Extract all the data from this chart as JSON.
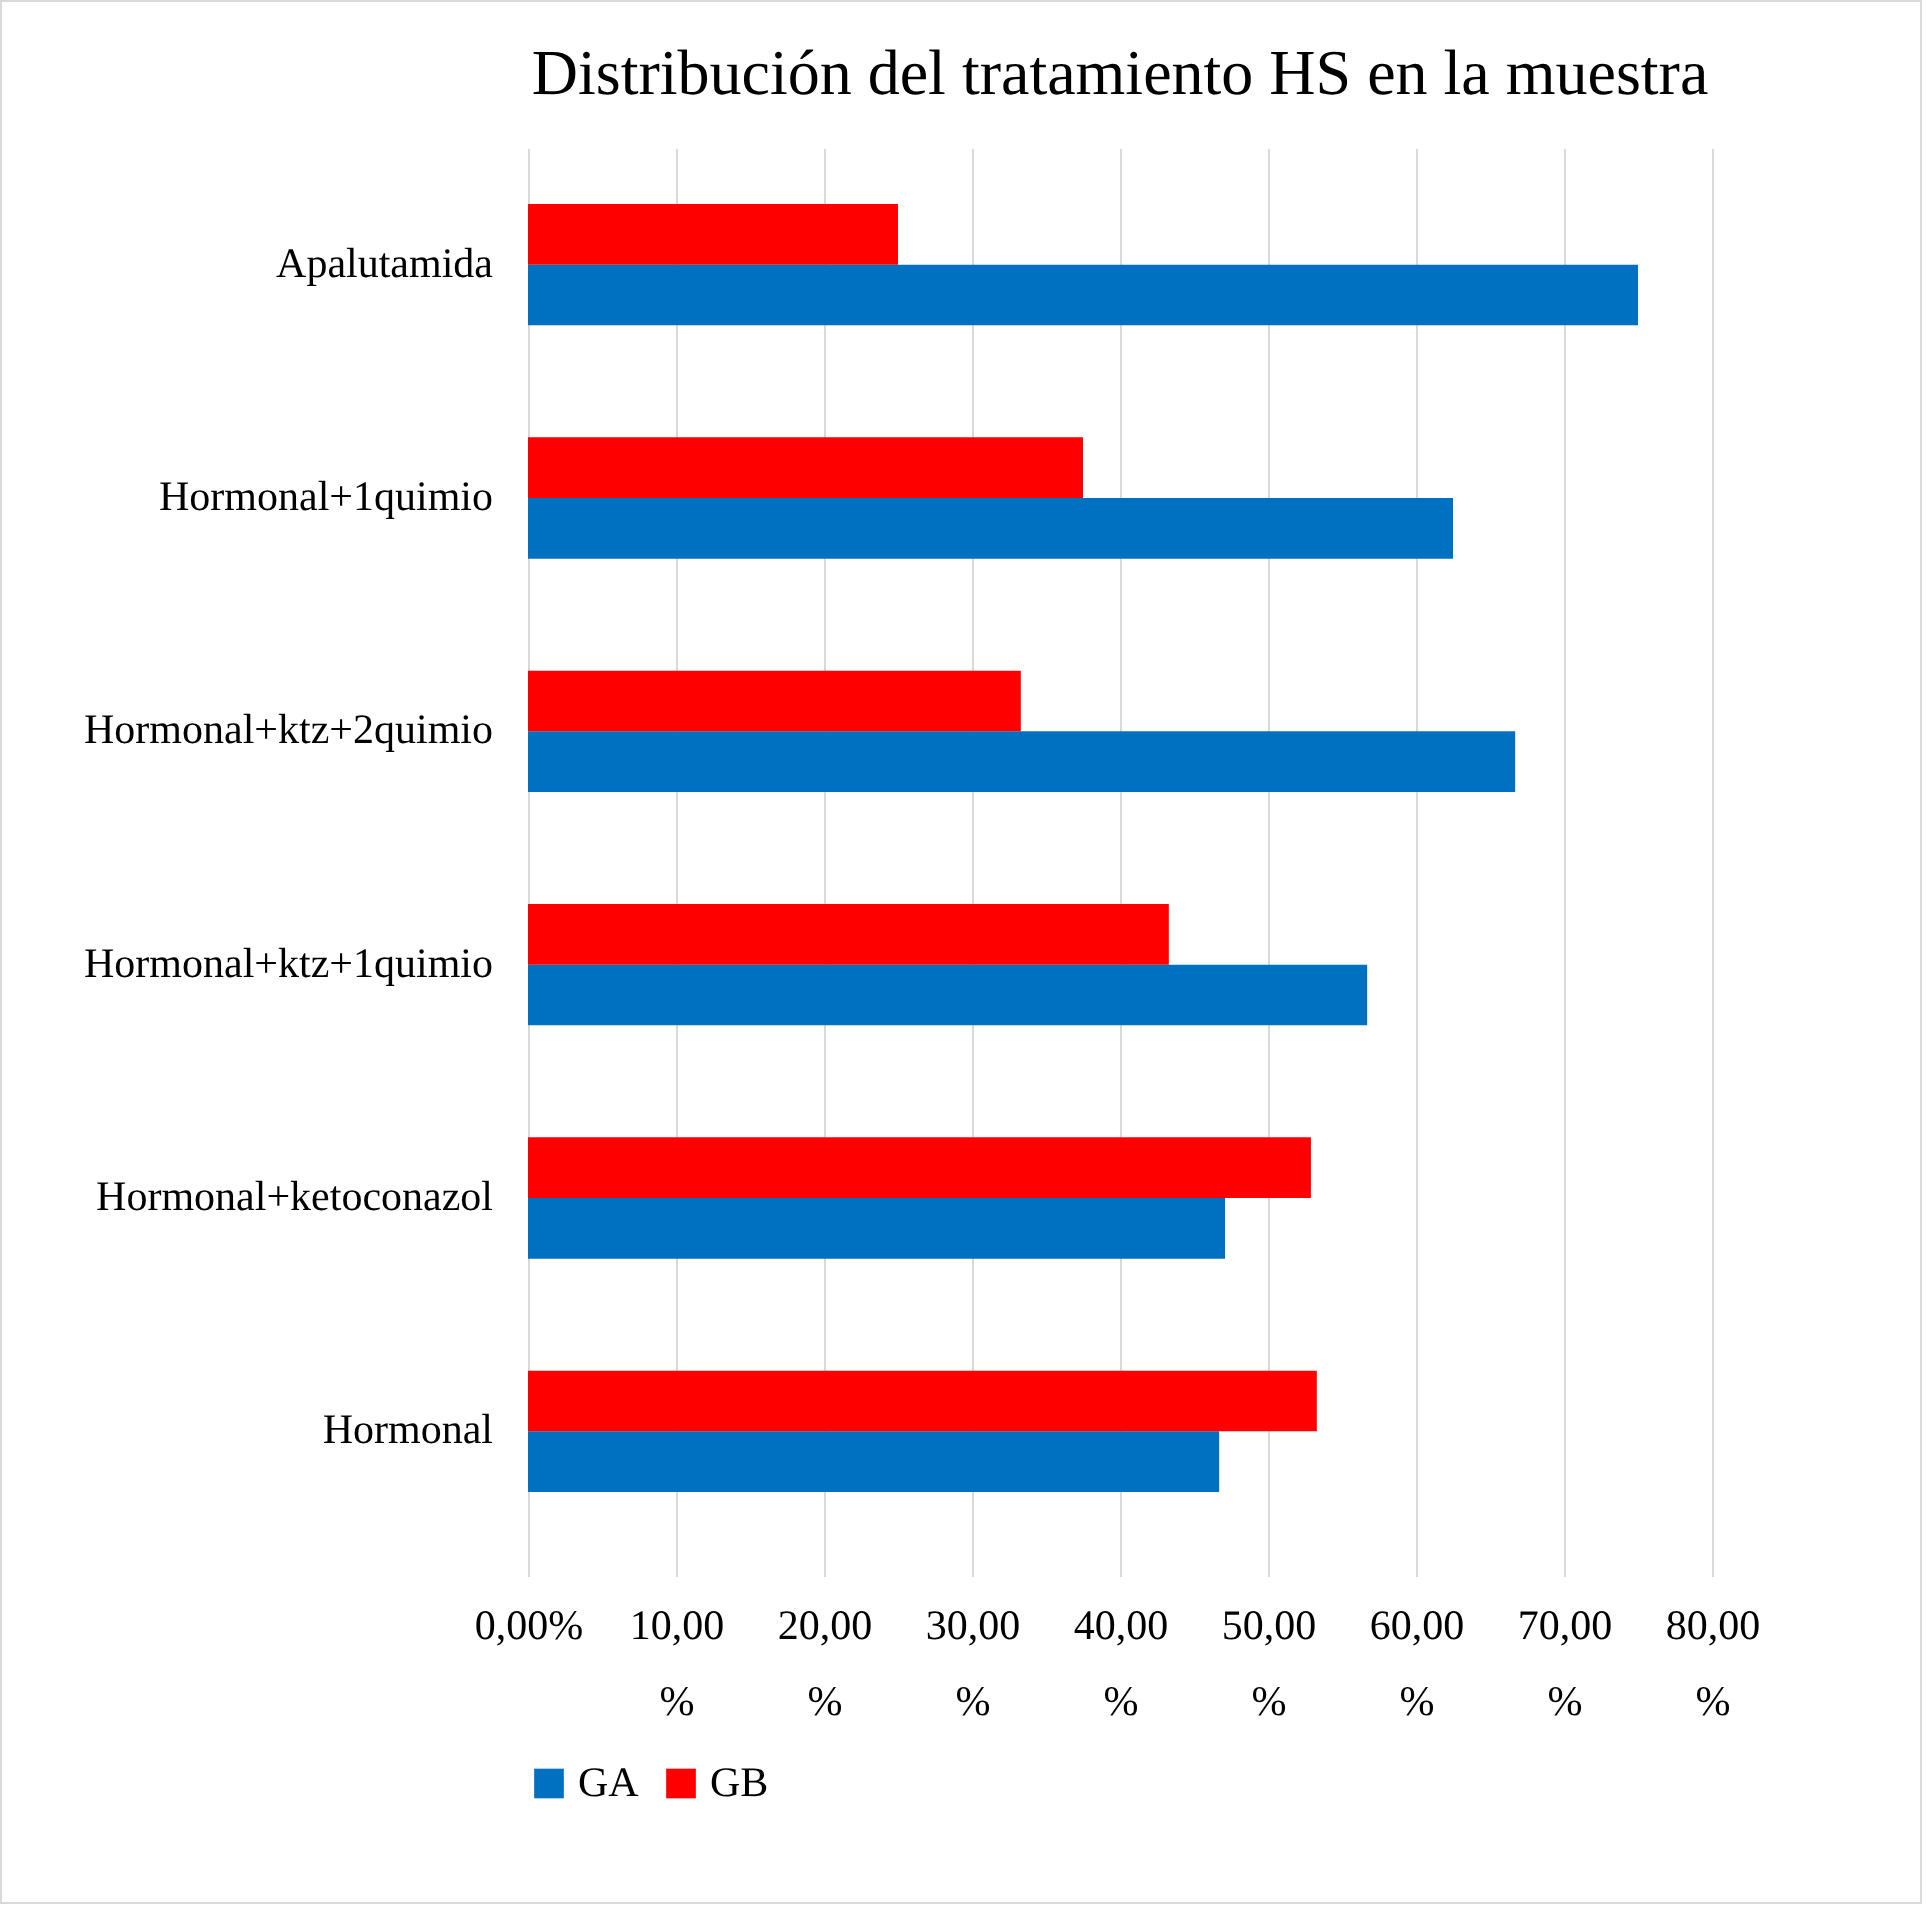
{
  "chart_data": {
    "type": "bar",
    "orientation": "horizontal",
    "title": "Distribución del tratamiento HS en la muestra",
    "categories": [
      "Apalutamida",
      "Hormonal+1quimio",
      "Hormonal+ktz+2quimio",
      "Hormonal+ktz+1quimio",
      "Hormonal+ketoconazol",
      "Hormonal"
    ],
    "series": [
      {
        "name": "GA",
        "color": "#0070c0",
        "values": [
          75.0,
          62.5,
          66.7,
          56.7,
          47.1,
          46.7
        ]
      },
      {
        "name": "GB",
        "color": "#ff0000",
        "values": [
          25.0,
          37.5,
          33.3,
          43.3,
          52.9,
          53.3
        ]
      }
    ],
    "xlim": [
      0,
      80
    ],
    "xticks": [
      {
        "value": 0,
        "label": "0,00%"
      },
      {
        "value": 10,
        "label": "10,00 %"
      },
      {
        "value": 20,
        "label": "20,00 %"
      },
      {
        "value": 30,
        "label": "30,00 %"
      },
      {
        "value": 40,
        "label": "40,00 %"
      },
      {
        "value": 50,
        "label": "50,00 %"
      },
      {
        "value": 60,
        "label": "60,00 %"
      },
      {
        "value": 70,
        "label": "70,00 %"
      },
      {
        "value": 80,
        "label": "80,00 %"
      }
    ],
    "grid": "x",
    "legend": "bottom"
  }
}
